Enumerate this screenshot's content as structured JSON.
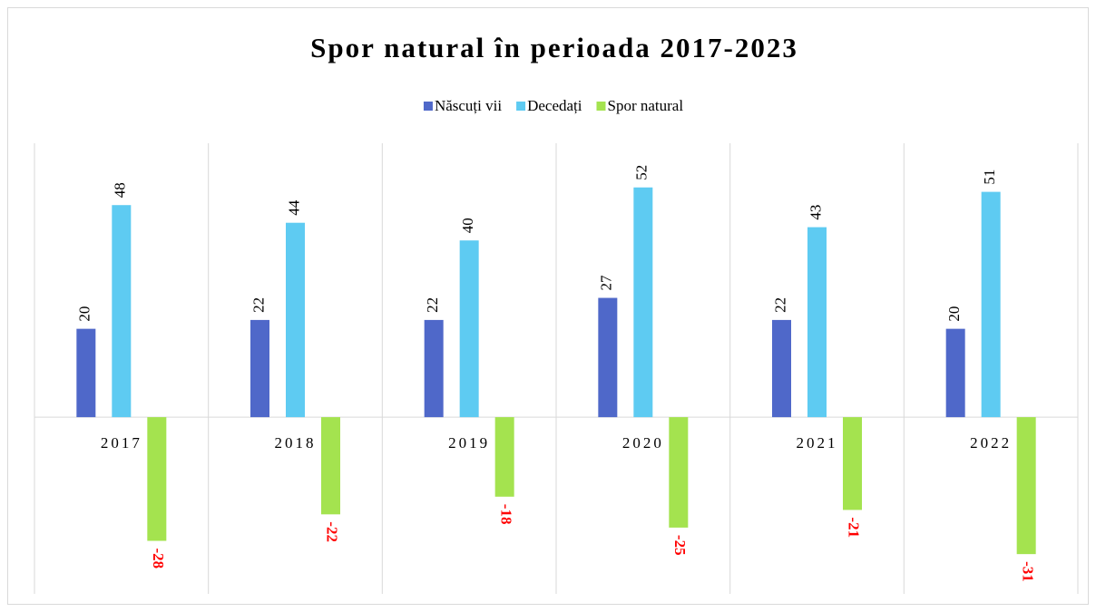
{
  "chart_data": {
    "type": "bar",
    "title": "Spor natural în perioada 2017-2023",
    "categories": [
      "2017",
      "2018",
      "2019",
      "2020",
      "2021",
      "2022"
    ],
    "series": [
      {
        "name": "Născuți vii",
        "color": "#4f68c9",
        "label_color": "#000000",
        "values": [
          20,
          22,
          22,
          27,
          22,
          20
        ]
      },
      {
        "name": "Decedați",
        "color": "#5ecbf2",
        "label_color": "#000000",
        "values": [
          48,
          44,
          40,
          52,
          43,
          51
        ]
      },
      {
        "name": "Spor natural",
        "color": "#a4e34f",
        "label_color": "#ff0000",
        "values": [
          -28,
          -22,
          -18,
          -25,
          -21,
          -31
        ]
      }
    ],
    "ylim": [
      -40,
      62
    ],
    "legend": "top"
  }
}
